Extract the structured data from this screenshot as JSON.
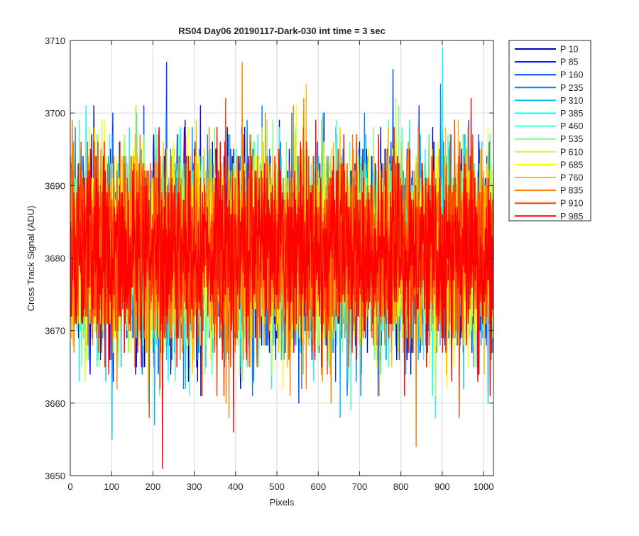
{
  "chart_data": {
    "type": "line",
    "title": "RS04 Day06 20190117-Dark-030 int time = 3 sec",
    "xlabel": "Pixels",
    "ylabel": "Cross Track Signal (ADU)",
    "xlim": [
      0,
      1024
    ],
    "ylim": [
      3650,
      3710
    ],
    "xticks": [
      0,
      100,
      200,
      300,
      400,
      500,
      600,
      700,
      800,
      900,
      1000
    ],
    "yticks": [
      3650,
      3660,
      3670,
      3680,
      3690,
      3700,
      3710
    ],
    "grid": true,
    "legend_position": "outside-top-right",
    "colormap": "jet",
    "n_pixels": 1024,
    "signal_mean_adu": 3681,
    "signal_sigma_adu": 6.5,
    "series": [
      {
        "name": "P 10",
        "color": "#0000b3"
      },
      {
        "name": "P 85",
        "color": "#0000ff"
      },
      {
        "name": "P 160",
        "color": "#0040ff"
      },
      {
        "name": "P 235",
        "color": "#0080ff"
      },
      {
        "name": "P 310",
        "color": "#00bfff"
      },
      {
        "name": "P 385",
        "color": "#00ffff"
      },
      {
        "name": "P 460",
        "color": "#40ffbf"
      },
      {
        "name": "P 535",
        "color": "#80ff80"
      },
      {
        "name": "P 610",
        "color": "#bfff40"
      },
      {
        "name": "P 685",
        "color": "#ffff00"
      },
      {
        "name": "P 760",
        "color": "#ffbf00"
      },
      {
        "name": "P 835",
        "color": "#ff8000"
      },
      {
        "name": "P 910",
        "color": "#ff4000"
      },
      {
        "name": "P 985",
        "color": "#ff0000"
      }
    ],
    "annotated_extremes": [
      {
        "series": "P 985",
        "x": 222,
        "y": 3651
      },
      {
        "series": "P 835",
        "x": 836,
        "y": 3654
      },
      {
        "series": "P 160",
        "x": 232,
        "y": 3707
      },
      {
        "series": "P 835",
        "x": 415,
        "y": 3707
      },
      {
        "series": "P 385",
        "x": 900,
        "y": 3709
      },
      {
        "series": "P 310",
        "x": 100,
        "y": 3655
      }
    ]
  }
}
